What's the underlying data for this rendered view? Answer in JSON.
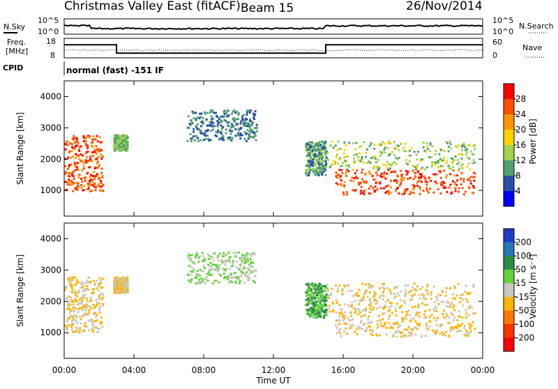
{
  "header": {
    "title": "Christmas Valley East (fitACF)",
    "beam": "Beam 15",
    "date": "26/Nov/2014"
  },
  "panels": {
    "nsky_label": "N.Sky",
    "nsky_ticks": [
      "10^5",
      "10^0"
    ],
    "nsearch_label": "N.Search",
    "nsearch_ticks": [
      "10^5",
      "10^0"
    ],
    "freq_label_line1": "Freq.",
    "freq_label_line2": "[MHz]",
    "freq_ticks": [
      "18",
      "8"
    ],
    "nave_label": "Nave",
    "nave_ticks": [
      "60",
      "0"
    ],
    "cpid_label": "CPID",
    "cpid_text": "normal (fast) -151 IF"
  },
  "colorbars": {
    "power_label": "Power [dB]",
    "power_ticks": [
      "28",
      "24",
      "20",
      "16",
      "12",
      "8",
      "4"
    ],
    "power_colors": [
      "#ff0000",
      "#ff5000",
      "#ff9600",
      "#ffd200",
      "#a0d250",
      "#50a070",
      "#2850a0",
      "#0000ff"
    ],
    "velocity_label": "Velocity [m s⁻¹]",
    "velocity_ticks": [
      "200",
      "100",
      "50",
      "15",
      "-15",
      "-50",
      "-100",
      "-200"
    ],
    "velocity_colors": [
      "#1e3cc8",
      "#2878b4",
      "#2d8c46",
      "#64d23c",
      "#c8c8c0",
      "#ffb400",
      "#ff7800",
      "#ff3200",
      "#ff0000"
    ]
  },
  "chart_data": {
    "type": "heatmap",
    "xlabel": "Time UT",
    "ylabel": "Slant Range [km]",
    "xticks": [
      "00:00",
      "04:00",
      "08:00",
      "12:00",
      "16:00",
      "20:00",
      "00:00"
    ],
    "yticks": [
      "4000",
      "3000",
      "2000",
      "1000"
    ],
    "xlim_hours": [
      0,
      24
    ],
    "ylim_km": [
      180,
      4500
    ],
    "freq_schedule": [
      {
        "start_hour": 0,
        "end_hour": 3.0,
        "freq_mhz": 15
      },
      {
        "start_hour": 3.0,
        "end_hour": 15.0,
        "freq_mhz": 10
      },
      {
        "start_hour": 15.0,
        "end_hour": 24,
        "freq_mhz": 15
      }
    ],
    "scatter_regions": [
      {
        "start_hour": 0.0,
        "end_hour": 2.2,
        "range_min_km": 1000,
        "range_max_km": 2800,
        "power_db": 26,
        "velocity": -15
      },
      {
        "start_hour": 2.8,
        "end_hour": 3.6,
        "range_min_km": 2300,
        "range_max_km": 2800,
        "power_db": 12,
        "velocity": -15
      },
      {
        "start_hour": 7.0,
        "end_hour": 11.0,
        "range_min_km": 2600,
        "range_max_km": 3600,
        "power_db": 8,
        "velocity": 15
      },
      {
        "start_hour": 13.8,
        "end_hour": 15.0,
        "range_min_km": 1500,
        "range_max_km": 2600,
        "power_db": 10,
        "velocity": 50
      },
      {
        "start_hour": 15.5,
        "end_hour": 23.5,
        "range_min_km": 900,
        "range_max_km": 1700,
        "power_db": 27,
        "velocity": -15
      },
      {
        "start_hour": 15.0,
        "end_hour": 23.5,
        "range_min_km": 1700,
        "range_max_km": 2600,
        "power_db": 14,
        "velocity": -15
      }
    ]
  }
}
